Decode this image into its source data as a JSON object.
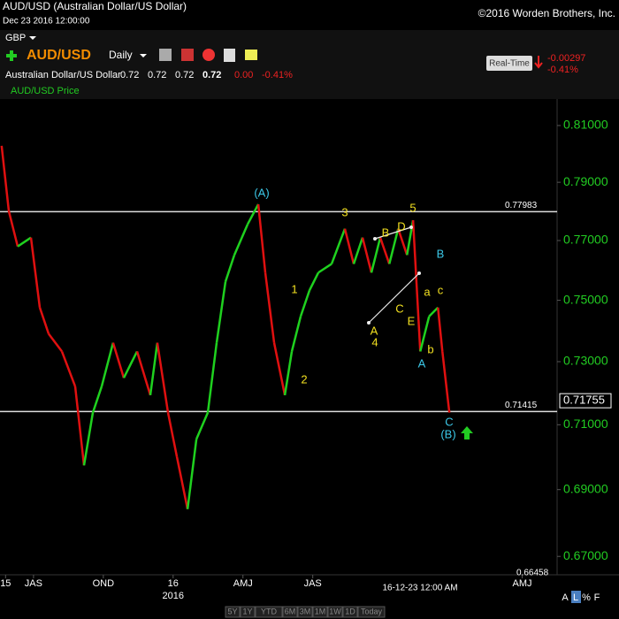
{
  "header": {
    "title": "AUD/USD (Australian Dollar/US Dollar)",
    "datetime": "Dec 23 2016 12:00:00",
    "copyright": "©2016 Worden Brothers, Inc.",
    "currency": "GBP",
    "symbol": "AUD/USD",
    "period": "Daily",
    "name": "Australian Dollar/US Dollar",
    "quote": [
      "0.72",
      "0.72",
      "0.72",
      "0.72",
      "0.00",
      "-0.41%"
    ],
    "realtime": "Real-Time",
    "change": "-0.00297",
    "change_pct": "-0.41%",
    "pane_label": "AUD/USD Price"
  },
  "chart_data": {
    "type": "line",
    "log_scale": true,
    "up_color": "#1fd11f",
    "down_color": "#e01010",
    "x": [
      -1.37,
      -1.06,
      -0.68,
      -0.11,
      0.27,
      0.65,
      1.22,
      1.79,
      2.17,
      2.55,
      2.93,
      3.42,
      3.88,
      4.45,
      5.02,
      5.32,
      5.78,
      6.16,
      6.62,
      7.0,
      7.49,
      7.87,
      8.25,
      8.63,
      9.2,
      9.66,
      9.96,
      10.34,
      10.8,
      11.1,
      11.48,
      11.86,
      12.24,
      12.81,
      13.38,
      13.76,
      14.14,
      14.52,
      14.9,
      15.29,
      15.67,
      16.05,
      16.31,
      16.62,
      17.0,
      17.38,
      17.57,
      17.87
    ],
    "series": [
      {
        "name": "AUD/USD",
        "values": [
          0.8028,
          0.78,
          0.768,
          0.771,
          0.7476,
          0.739,
          0.7333,
          0.7221,
          0.6974,
          0.7138,
          0.7221,
          0.7361,
          0.7248,
          0.7333,
          0.7193,
          0.7361,
          0.7138,
          0.7001,
          0.6841,
          0.7055,
          0.7138,
          0.7361,
          0.7562,
          0.7651,
          0.7755,
          0.7824,
          0.7592,
          0.7361,
          0.7193,
          0.7333,
          0.7447,
          0.7533,
          0.7592,
          0.7621,
          0.774,
          0.7621,
          0.771,
          0.7592,
          0.771,
          0.7621,
          0.774,
          0.7651,
          0.7769,
          0.7333,
          0.7447,
          0.7476,
          0.7333,
          0.7138
        ]
      }
    ],
    "xlim": [
      -1.44,
      22.5
    ],
    "xticks": [
      {
        "value": -1.2,
        "label": "15"
      },
      {
        "value": 0,
        "label": "JAS"
      },
      {
        "value": 3,
        "label": "OND"
      },
      {
        "value": 6,
        "label": "16"
      },
      {
        "value": 9,
        "label": "AMJ"
      },
      {
        "value": 12,
        "label": "JAS"
      },
      {
        "value": 21,
        "label": "AMJ"
      }
    ],
    "year_label": "2016",
    "cursor_label": "16-12-23 12:00 AM",
    "ylim": [
      0.6646,
      0.8195
    ],
    "yticks": [
      {
        "value": 0.81,
        "label": "0.81000"
      },
      {
        "value": 0.79,
        "label": "0.79000"
      },
      {
        "value": 0.77,
        "label": "0.77000"
      },
      {
        "value": 0.75,
        "label": "0.75000"
      },
      {
        "value": 0.73,
        "label": "0.73000"
      },
      {
        "value": 0.71,
        "label": "0.71000"
      },
      {
        "value": 0.69,
        "label": "0.69000"
      },
      {
        "value": 0.67,
        "label": "0.67000"
      }
    ],
    "levels": [
      0.77983,
      0.71415
    ],
    "last_price": 0.71755,
    "bottom_level": 0.66458,
    "annotations": [
      "(A)",
      "3",
      "5",
      "B",
      "D",
      "1",
      "a",
      "B",
      "c",
      "C",
      "E",
      "A",
      "4",
      "2",
      "b",
      "A",
      "C",
      "(B)"
    ]
  },
  "footer": {
    "buttons": [
      "5Y",
      "1Y",
      "YTD",
      "6M",
      "3M",
      "1M",
      "1W",
      "1D",
      "Today"
    ],
    "scale_buttons": [
      "A",
      "L",
      "%",
      "F"
    ]
  }
}
